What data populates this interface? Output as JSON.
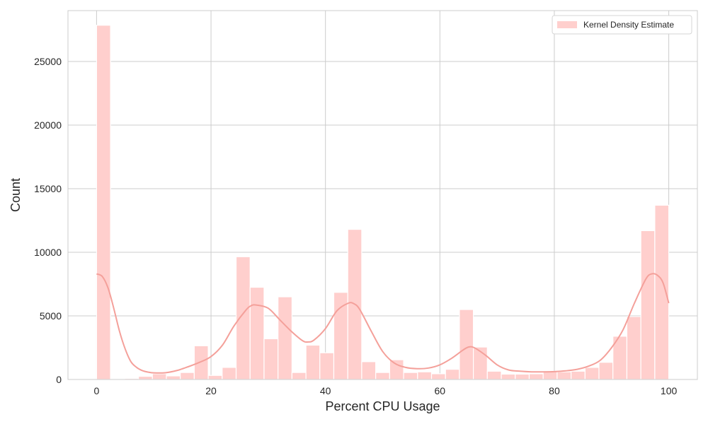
{
  "chart_data": {
    "type": "bar",
    "subtype": "histogram-with-kde",
    "title": "",
    "xlabel": "Percent CPU Usage",
    "ylabel": "Count",
    "xlim": [
      -5,
      105
    ],
    "ylim": [
      0,
      29000
    ],
    "xticks": [
      0,
      20,
      40,
      60,
      80,
      100
    ],
    "yticks": [
      0,
      5000,
      10000,
      15000,
      20000,
      25000
    ],
    "grid": true,
    "legend": {
      "position": "top-right",
      "entries": [
        "Kernel Density Estimate"
      ]
    },
    "bin_edges": [
      0,
      2.44,
      4.88,
      7.32,
      9.76,
      12.2,
      14.63,
      17.07,
      19.51,
      21.95,
      24.39,
      26.83,
      29.27,
      31.71,
      34.15,
      36.59,
      39.02,
      41.46,
      43.9,
      46.34,
      48.78,
      51.22,
      53.66,
      56.1,
      58.54,
      60.98,
      63.41,
      65.85,
      68.29,
      70.73,
      73.17,
      75.61,
      78.05,
      80.49,
      82.93,
      85.37,
      87.8,
      90.24,
      92.68,
      95.12,
      97.56,
      100
    ],
    "counts": [
      27850,
      0,
      80,
      250,
      450,
      280,
      550,
      2650,
      320,
      950,
      9650,
      7250,
      3200,
      6500,
      550,
      2700,
      2100,
      6850,
      11800,
      1400,
      550,
      1550,
      550,
      600,
      450,
      800,
      5500,
      2550,
      650,
      420,
      420,
      450,
      650,
      600,
      650,
      950,
      1350,
      3400,
      4950,
      11700,
      13700
    ],
    "kde": {
      "name": "Kernel Density Estimate",
      "x": [
        0,
        1,
        2,
        3,
        4,
        5,
        6,
        7,
        8,
        9,
        10,
        12,
        14,
        16,
        18,
        20,
        22,
        24,
        26,
        27,
        28,
        30,
        32,
        34,
        36,
        37,
        38,
        40,
        42,
        44,
        45,
        46,
        48,
        50,
        52,
        54,
        56,
        58,
        60,
        62,
        64,
        65,
        66,
        68,
        70,
        72,
        74,
        76,
        78,
        80,
        82,
        84,
        86,
        88,
        90,
        92,
        94,
        96,
        97,
        98,
        99,
        100
      ],
      "y": [
        8300,
        8100,
        7200,
        5600,
        3800,
        2400,
        1400,
        950,
        700,
        580,
        520,
        530,
        700,
        1000,
        1350,
        1800,
        2700,
        4200,
        5400,
        5800,
        5850,
        5600,
        4700,
        3800,
        3050,
        2950,
        3100,
        4000,
        5400,
        6000,
        5950,
        5500,
        3800,
        2200,
        1300,
        950,
        850,
        900,
        1150,
        1650,
        2300,
        2550,
        2500,
        1900,
        1150,
        750,
        650,
        600,
        600,
        620,
        680,
        800,
        1050,
        1500,
        2500,
        3900,
        6000,
        7900,
        8300,
        8200,
        7600,
        6000
      ]
    },
    "colors": {
      "bar_fill": "#ffcfcd",
      "bar_edge": "#ffffff",
      "kde_line": "#f4a09a",
      "grid": "#cccccc",
      "axes_border": "#cccccc"
    }
  }
}
